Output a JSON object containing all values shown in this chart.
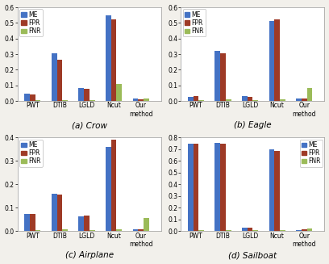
{
  "subplots": [
    {
      "title": "(a) Crow",
      "ylim": [
        0,
        0.6
      ],
      "yticks": [
        0,
        0.1,
        0.2,
        0.3,
        0.4,
        0.5,
        0.6
      ],
      "categories": [
        "PWT",
        "DTIB",
        "LGLD",
        "Ncut",
        "Our\nmethod"
      ],
      "ME": [
        0.045,
        0.305,
        0.082,
        0.548,
        0.015
      ],
      "FPR": [
        0.042,
        0.265,
        0.078,
        0.521,
        0.013
      ],
      "FNR": [
        0.005,
        0.008,
        0.005,
        0.108,
        0.018
      ],
      "legend_loc": "upper left"
    },
    {
      "title": "(b) Eagle",
      "ylim": [
        0,
        0.6
      ],
      "yticks": [
        0,
        0.1,
        0.2,
        0.3,
        0.4,
        0.5,
        0.6
      ],
      "categories": [
        "PWT",
        "DTIB",
        "LGLD",
        "Ncut",
        "Our\nmethod"
      ],
      "ME": [
        0.025,
        0.32,
        0.03,
        0.51,
        0.018
      ],
      "FPR": [
        0.032,
        0.308,
        0.028,
        0.522,
        0.015
      ],
      "FNR": [
        0.008,
        0.01,
        0.008,
        0.01,
        0.082
      ],
      "legend_loc": "upper left"
    },
    {
      "title": "(c) Airplane",
      "ylim": [
        0,
        0.4
      ],
      "yticks": [
        0,
        0.1,
        0.2,
        0.3,
        0.4
      ],
      "categories": [
        "PWT",
        "DTIB",
        "LGLD",
        "Ncut",
        "Our\nmethod"
      ],
      "ME": [
        0.075,
        0.162,
        0.065,
        0.36,
        0.008
      ],
      "FPR": [
        0.074,
        0.158,
        0.068,
        0.39,
        0.01
      ],
      "FNR": [
        0.005,
        0.008,
        0.005,
        0.008,
        0.057
      ],
      "legend_loc": "upper left"
    },
    {
      "title": "(d) Sailboat",
      "ylim": [
        0,
        0.8
      ],
      "yticks": [
        0,
        0.1,
        0.2,
        0.3,
        0.4,
        0.5,
        0.6,
        0.7,
        0.8
      ],
      "categories": [
        "PWT",
        "DTIB",
        "LGLD",
        "Ncut",
        "Our\nmethod"
      ],
      "ME": [
        0.75,
        0.755,
        0.03,
        0.7,
        0.012
      ],
      "FPR": [
        0.748,
        0.75,
        0.028,
        0.688,
        0.02
      ],
      "FNR": [
        0.01,
        0.012,
        0.01,
        0.012,
        0.025
      ],
      "legend_loc": "upper right"
    }
  ],
  "colors": {
    "ME": "#4472c4",
    "FPR": "#9e3a26",
    "FNR": "#9bbb59"
  },
  "bar_width": 0.2,
  "plot_bg": "#ffffff",
  "fig_bg": "#f2f0eb",
  "fontsize_title": 7.5,
  "fontsize_tick": 5.5,
  "fontsize_legend": 5.5
}
